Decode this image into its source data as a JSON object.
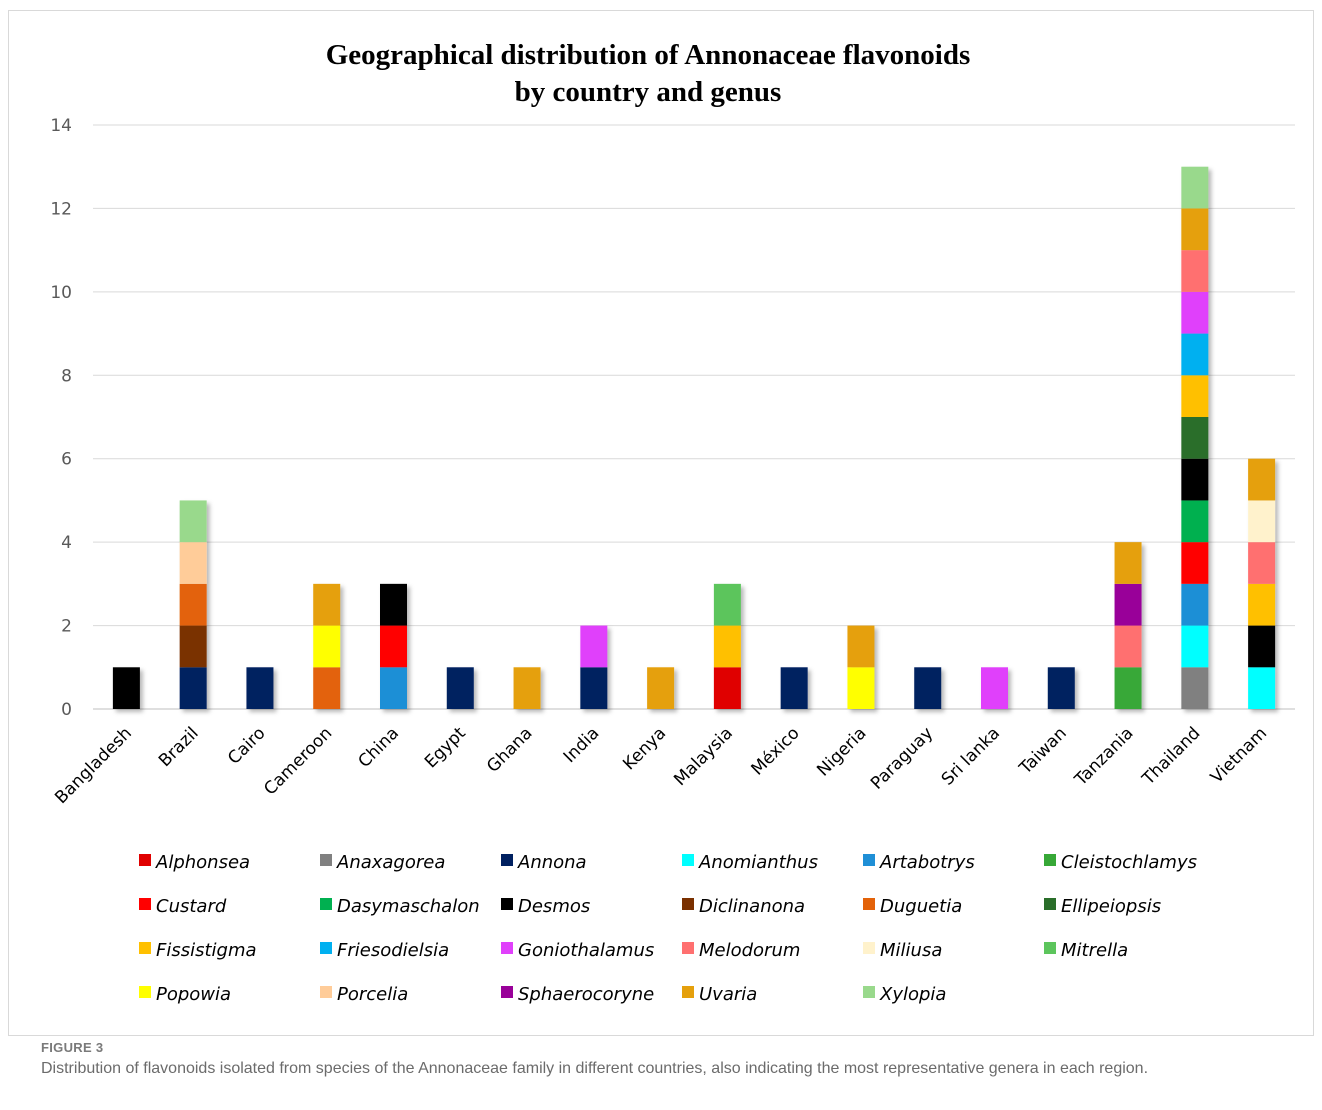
{
  "figure": {
    "label": "FIGURE 3",
    "caption": "Distribution of flavonoids isolated from species of the Annonaceae family in different countries, also indicating the most representative genera in each region."
  },
  "chart_data": {
    "type": "bar",
    "stacked": true,
    "title_lines": [
      "Geographical distribution of Annonaceae flavonoids",
      "by country and genus"
    ],
    "categories": [
      "Bangladesh",
      "Brazil",
      "Cairo",
      "Cameroon",
      "China",
      "Egypt",
      "Ghana",
      "India",
      "Kenya",
      "Malaysia",
      "México",
      "Nigeria",
      "Paraguay",
      "Sri lanka",
      "Taiwan",
      "Tanzania",
      "Thailand",
      "Vietnam"
    ],
    "ylim": [
      0,
      14
    ],
    "yticks": [
      0,
      2,
      4,
      6,
      8,
      10,
      12,
      14
    ],
    "grid": true,
    "legend_position": "bottom",
    "genera": [
      {
        "name": "Alphonsea",
        "color": "#e00000"
      },
      {
        "name": "Anaxagorea",
        "color": "#808080"
      },
      {
        "name": "Annona",
        "color": "#002060"
      },
      {
        "name": "Anomianthus",
        "color": "#00ffff"
      },
      {
        "name": "Artabotrys",
        "color": "#1f8fd6"
      },
      {
        "name": "Cleistochlamys",
        "color": "#37a837"
      },
      {
        "name": "Custard",
        "color": "#ff0000"
      },
      {
        "name": "Dasymaschalon",
        "color": "#00b050"
      },
      {
        "name": "Desmos",
        "color": "#000000"
      },
      {
        "name": "Diclinanona",
        "color": "#7a3000"
      },
      {
        "name": "Duguetia",
        "color": "#e36209"
      },
      {
        "name": "Ellipeiopsis",
        "color": "#2a6e2a"
      },
      {
        "name": "Fissistigma",
        "color": "#ffc000"
      },
      {
        "name": "Friesodielsia",
        "color": "#00b0f0"
      },
      {
        "name": "Goniothalamus",
        "color": "#e040fb"
      },
      {
        "name": "Melodorum",
        "color": "#ff7070"
      },
      {
        "name": "Miliusa",
        "color": "#fff2cc"
      },
      {
        "name": "Mitrella",
        "color": "#5cc55c"
      },
      {
        "name": "Popowia",
        "color": "#ffff00"
      },
      {
        "name": "Porcelia",
        "color": "#ffcc99"
      },
      {
        "name": "Sphaerocoryne",
        "color": "#990099"
      },
      {
        "name": "Uvaria",
        "color": "#e5a00c"
      },
      {
        "name": "Xylopia",
        "color": "#99d98c"
      }
    ],
    "stacks": [
      [
        "Desmos"
      ],
      [
        "Annona",
        "Diclinanona",
        "Duguetia",
        "Porcelia",
        "Xylopia"
      ],
      [
        "Annona"
      ],
      [
        "Duguetia",
        "Popowia",
        "Uvaria"
      ],
      [
        "Artabotrys",
        "Custard",
        "Desmos"
      ],
      [
        "Annona"
      ],
      [
        "Uvaria"
      ],
      [
        "Annona",
        "Goniothalamus"
      ],
      [
        "Uvaria"
      ],
      [
        "Alphonsea",
        "Fissistigma",
        "Mitrella"
      ],
      [
        "Annona"
      ],
      [
        "Popowia",
        "Uvaria"
      ],
      [
        "Annona"
      ],
      [
        "Goniothalamus"
      ],
      [
        "Annona"
      ],
      [
        "Cleistochlamys",
        "Melodorum",
        "Sphaerocoryne",
        "Uvaria"
      ],
      [
        "Anaxagorea",
        "Anomianthus",
        "Artabotrys",
        "Custard",
        "Dasymaschalon",
        "Desmos",
        "Ellipeiopsis",
        "Fissistigma",
        "Friesodielsia",
        "Goniothalamus",
        "Melodorum",
        "Uvaria",
        "Xylopia"
      ],
      [
        "Anomianthus",
        "Desmos",
        "Fissistigma",
        "Melodorum",
        "Miliusa",
        "Uvaria"
      ]
    ]
  }
}
